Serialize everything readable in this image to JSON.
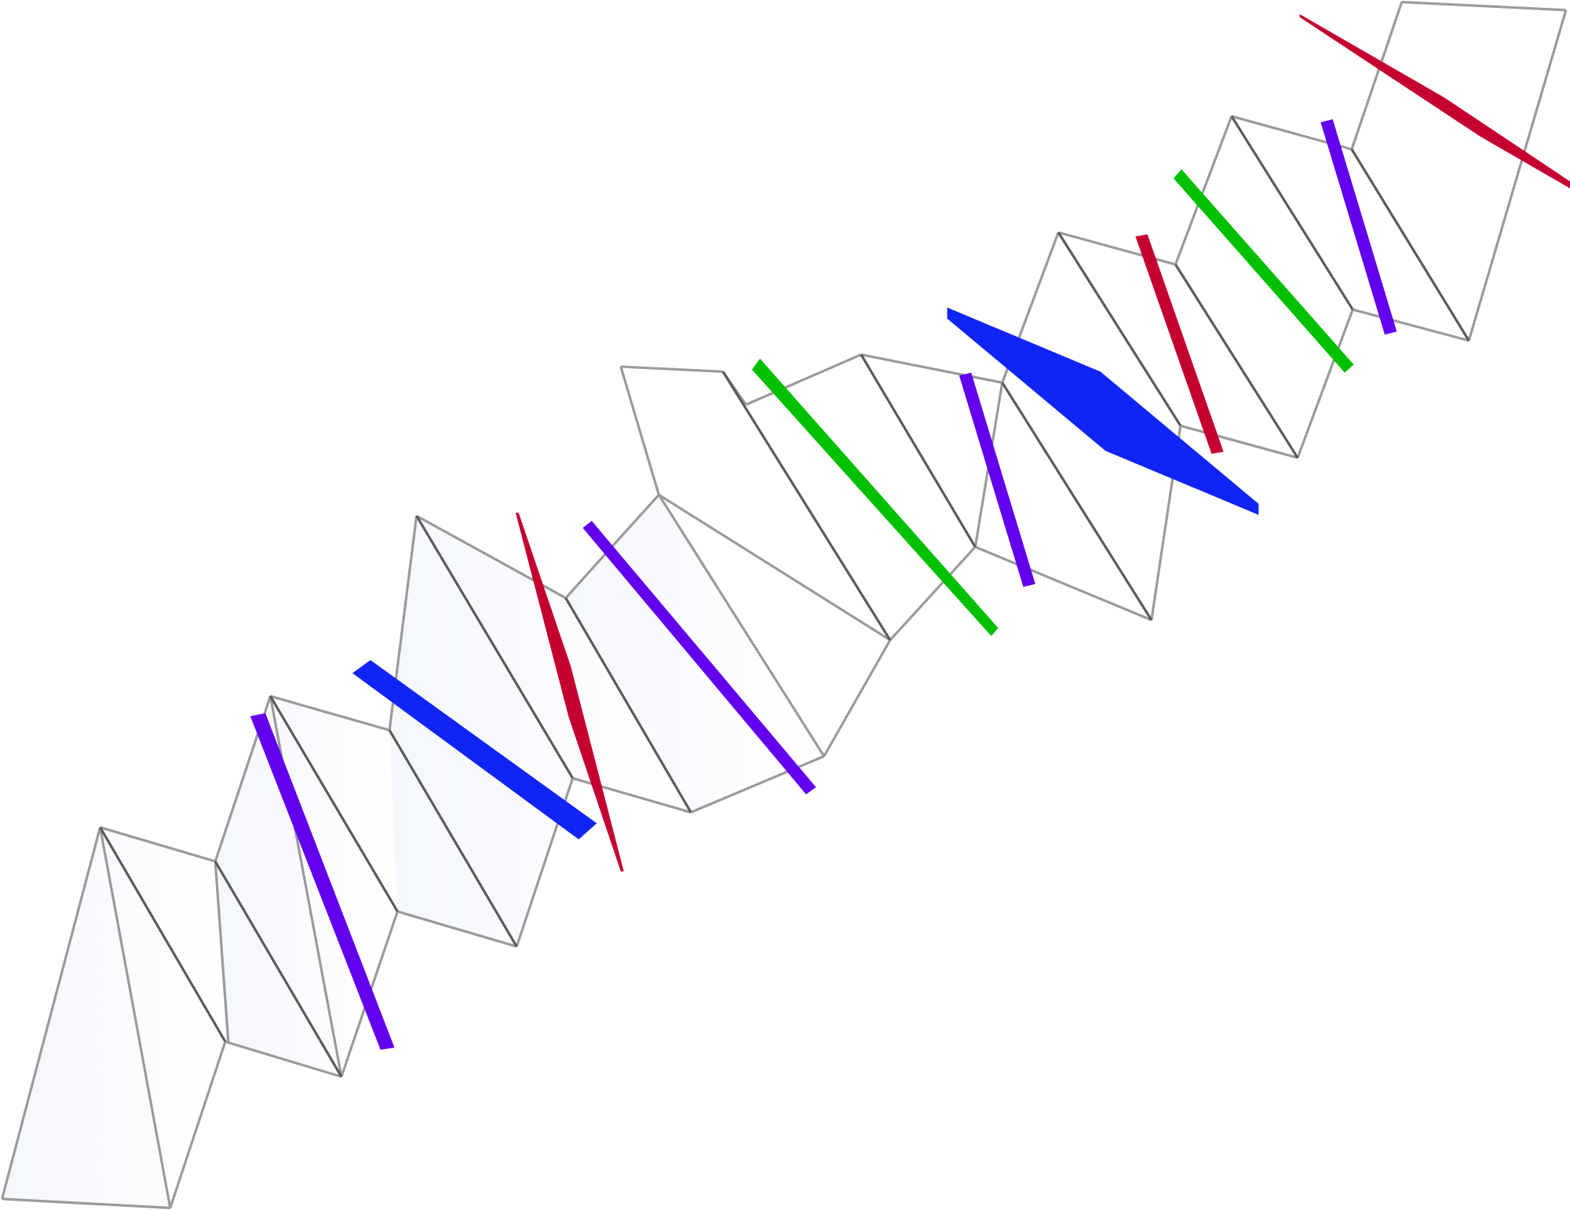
{
  "colors": {
    "background": "#ffffff",
    "panel_fill": "#f4f7fc",
    "edge_light": "#9a9a9a",
    "edge_dark": "#5a5a5a",
    "purple": "#6200ee",
    "blue": "#1024f4",
    "red": "#c40030",
    "green": "#00c000"
  }
}
